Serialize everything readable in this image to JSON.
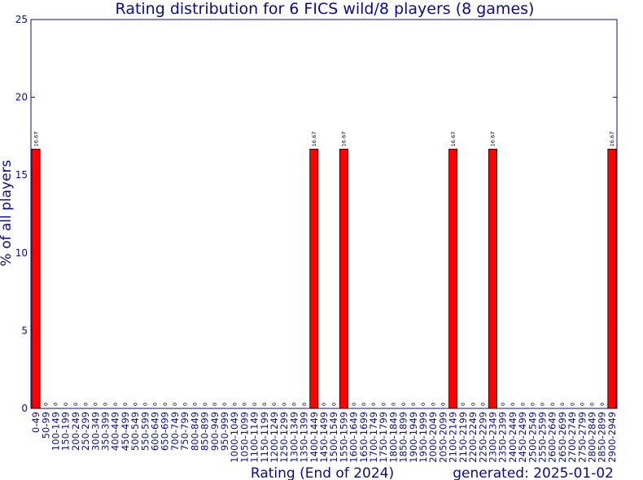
{
  "chart_data": {
    "type": "bar",
    "title": "Rating distribution for 6 FICS wild/8 players (8 games)",
    "xlabel": "Rating (End of 2024)",
    "ylabel": "% of all players",
    "footer": "generated: 2025-01-02",
    "ylim": [
      0,
      25
    ],
    "yticks": [
      0,
      5,
      10,
      15,
      20,
      25
    ],
    "grid": false,
    "colors": {
      "bar": "#ff0000",
      "bar_edge": "#000000",
      "axes": "#0a0a8c",
      "text": "#0a0a8c"
    },
    "categories": [
      "0-49",
      "50-99",
      "100-149",
      "150-199",
      "200-249",
      "250-299",
      "300-349",
      "350-399",
      "400-449",
      "450-499",
      "500-549",
      "550-599",
      "600-649",
      "650-699",
      "700-749",
      "750-799",
      "800-849",
      "850-899",
      "900-949",
      "950-999",
      "1000-1049",
      "1050-1099",
      "1100-1149",
      "1150-1199",
      "1200-1249",
      "1250-1299",
      "1300-1349",
      "1350-1399",
      "1400-1449",
      "1450-1499",
      "1500-1549",
      "1550-1599",
      "1600-1649",
      "1650-1699",
      "1700-1749",
      "1750-1799",
      "1800-1849",
      "1850-1899",
      "1900-1949",
      "1950-1999",
      "2000-2049",
      "2050-2099",
      "2100-2149",
      "2150-2199",
      "2200-2249",
      "2250-2299",
      "2300-2349",
      "2350-2399",
      "2400-2449",
      "2450-2499",
      "2500-2549",
      "2550-2599",
      "2600-2649",
      "2650-2699",
      "2700-2749",
      "2750-2799",
      "2800-2849",
      "2850-2899",
      "2900-2949"
    ],
    "values": [
      16.67,
      0,
      0,
      0,
      0,
      0,
      0,
      0,
      0,
      0,
      0,
      0,
      0,
      0,
      0,
      0,
      0,
      0,
      0,
      0,
      0,
      0,
      0,
      0,
      0,
      0,
      0,
      0,
      16.67,
      0,
      0,
      16.67,
      0,
      0,
      0,
      0,
      0,
      0,
      0,
      0,
      0,
      0,
      16.67,
      0,
      0,
      0,
      16.67,
      0,
      0,
      0,
      0,
      0,
      0,
      0,
      0,
      0,
      0,
      0,
      16.67
    ],
    "value_labels": [
      "16.67",
      "0",
      "0",
      "0",
      "0",
      "0",
      "0",
      "0",
      "0",
      "0",
      "0",
      "0",
      "0",
      "0",
      "0",
      "0",
      "0",
      "0",
      "0",
      "0",
      "0",
      "0",
      "0",
      "0",
      "0",
      "0",
      "0",
      "0",
      "16.67",
      "0",
      "0",
      "16.67",
      "0",
      "0",
      "0",
      "0",
      "0",
      "0",
      "0",
      "0",
      "0",
      "0",
      "16.67",
      "0",
      "0",
      "0",
      "16.67",
      "0",
      "0",
      "0",
      "0",
      "0",
      "0",
      "0",
      "0",
      "0",
      "0",
      "0",
      "16.67"
    ]
  }
}
